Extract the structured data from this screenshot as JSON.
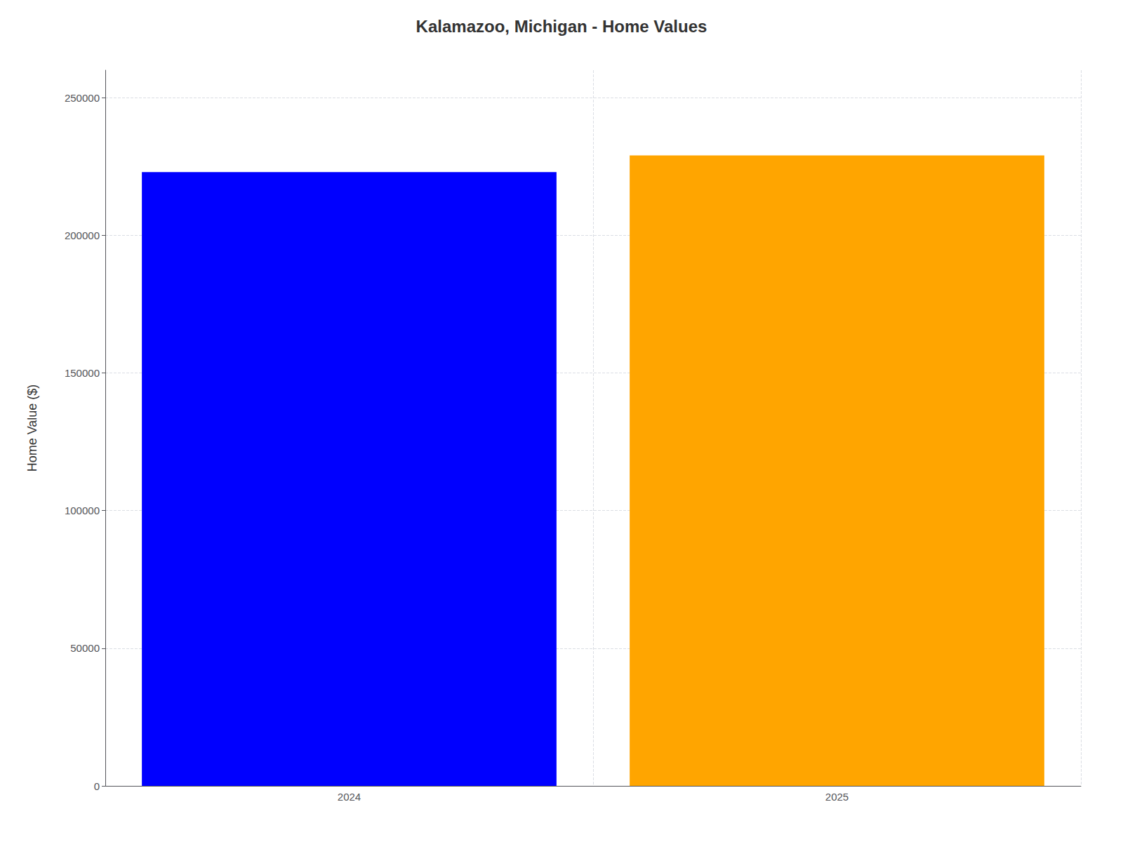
{
  "chart_data": {
    "type": "bar",
    "title": "Kalamazoo, Michigan - Home Values",
    "categories": [
      "2024",
      "2025"
    ],
    "values": [
      223000,
      229000
    ],
    "colors": [
      "#0000ff",
      "#ffa500"
    ],
    "ylabel": "Home Value ($)",
    "ylim": [
      0,
      260000
    ],
    "yticks": [
      0,
      50000,
      100000,
      150000,
      200000,
      250000
    ],
    "grid": true
  }
}
